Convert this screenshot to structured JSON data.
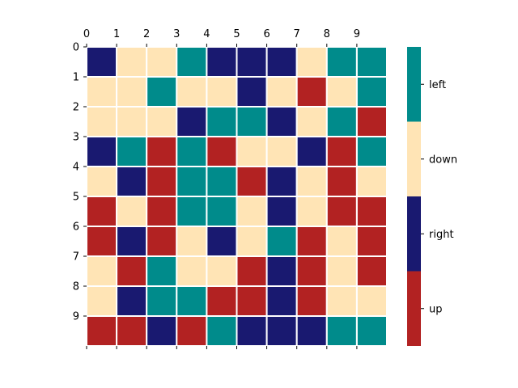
{
  "chart_data": {
    "type": "heatmap",
    "title": "",
    "xlabel": "",
    "ylabel": "",
    "x_ticks": [
      "0",
      "1",
      "2",
      "3",
      "4",
      "5",
      "6",
      "7",
      "8",
      "9"
    ],
    "y_ticks": [
      "0",
      "1",
      "2",
      "3",
      "4",
      "5",
      "6",
      "7",
      "8",
      "9"
    ],
    "x_axis_position": "top",
    "grid": false,
    "categories": [
      {
        "name": "up",
        "color": "#b22222"
      },
      {
        "name": "right",
        "color": "#191970"
      },
      {
        "name": "down",
        "color": "#ffe4b5"
      },
      {
        "name": "left",
        "color": "#008b8b"
      }
    ],
    "legend_order_top_to_bottom": [
      "left",
      "down",
      "right",
      "up"
    ],
    "legend_placement": "right",
    "cell_separator_color": "#ffffff",
    "values": [
      [
        "right",
        "down",
        "down",
        "left",
        "right",
        "right",
        "right",
        "down",
        "left",
        "left"
      ],
      [
        "down",
        "down",
        "left",
        "down",
        "down",
        "right",
        "down",
        "up",
        "down",
        "left"
      ],
      [
        "down",
        "down",
        "down",
        "right",
        "left",
        "left",
        "right",
        "down",
        "left",
        "up"
      ],
      [
        "right",
        "left",
        "up",
        "left",
        "up",
        "down",
        "down",
        "right",
        "up",
        "left"
      ],
      [
        "down",
        "right",
        "up",
        "left",
        "left",
        "up",
        "right",
        "down",
        "up",
        "down"
      ],
      [
        "up",
        "down",
        "up",
        "left",
        "left",
        "down",
        "right",
        "down",
        "up",
        "up"
      ],
      [
        "up",
        "right",
        "up",
        "down",
        "right",
        "down",
        "left",
        "up",
        "down",
        "up"
      ],
      [
        "down",
        "up",
        "left",
        "down",
        "down",
        "up",
        "right",
        "up",
        "down",
        "up"
      ],
      [
        "down",
        "right",
        "left",
        "left",
        "up",
        "up",
        "right",
        "up",
        "down",
        "down"
      ],
      [
        "up",
        "up",
        "right",
        "up",
        "left",
        "right",
        "right",
        "right",
        "left",
        "left"
      ]
    ]
  }
}
